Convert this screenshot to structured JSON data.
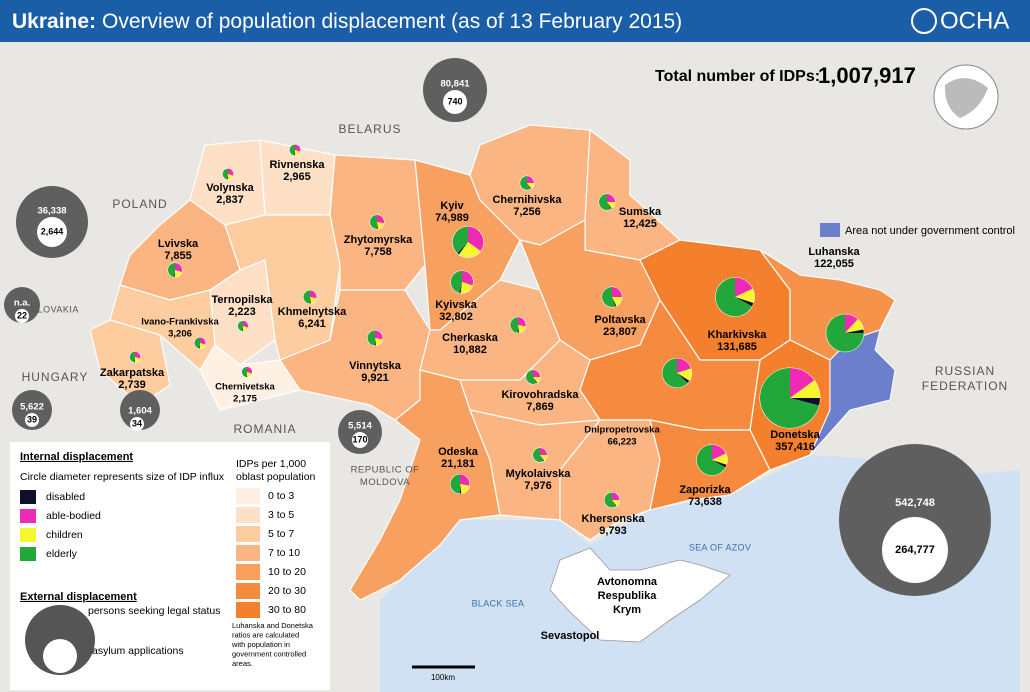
{
  "header": {
    "title_bold": "Ukraine:",
    "title": "Overview of population displacement (as of 13 February 2015)",
    "logo": "OCHA"
  },
  "total": {
    "label": "Total number of IDPs:",
    "value": "1,007,917"
  },
  "legend_area": {
    "label": "Area not under government control",
    "color": "#6b7fcc"
  },
  "oblasts": [
    {
      "name": "Volynska",
      "idps": 2837,
      "idps_label": "2,837",
      "fill": "#fde0c5",
      "shares": [
        2,
        30,
        20,
        48
      ]
    },
    {
      "name": "Rivnenska",
      "idps": 2965,
      "idps_label": "2,965",
      "fill": "#fde0c5",
      "shares": [
        2,
        30,
        20,
        48
      ]
    },
    {
      "name": "Lvivska",
      "idps": 7855,
      "idps_label": "7,855",
      "fill": "#fbb583",
      "shares": [
        2,
        30,
        20,
        48
      ]
    },
    {
      "name": "Ternopilska",
      "idps": 2223,
      "idps_label": "2,223",
      "fill": "#fde0c5",
      "shares": [
        2,
        30,
        20,
        48
      ]
    },
    {
      "name": "Khmelnytska",
      "idps": 6241,
      "idps_label": "6,241",
      "fill": "#fdcda0",
      "shares": [
        2,
        28,
        20,
        50
      ]
    },
    {
      "name": "Zhytomyrska",
      "idps": 7758,
      "idps_label": "7,758",
      "fill": "#fbb583",
      "shares": [
        2,
        28,
        20,
        50
      ]
    },
    {
      "name": "Kyiv",
      "idps": 74989,
      "idps_label": "74,989",
      "fill": "#f68b3f",
      "shares": [
        2,
        35,
        25,
        38
      ]
    },
    {
      "name": "Kyivska",
      "idps": 32802,
      "idps_label": "32,802",
      "fill": "#f8a060",
      "shares": [
        2,
        30,
        22,
        46
      ]
    },
    {
      "name": "Chernihivska",
      "idps": 7256,
      "idps_label": "7,256",
      "fill": "#fbb583",
      "shares": [
        2,
        25,
        15,
        58
      ]
    },
    {
      "name": "Sumska",
      "idps": 12425,
      "idps_label": "12,425",
      "fill": "#fbb583",
      "shares": [
        2,
        25,
        15,
        58
      ]
    },
    {
      "name": "Ivano-Frankivska",
      "idps": 3206,
      "idps_label": "3,206",
      "fill": "#fdcda0",
      "shares": [
        2,
        30,
        20,
        48
      ]
    },
    {
      "name": "Zakarpatska",
      "idps": 2739,
      "idps_label": "2,739",
      "fill": "#fdcda0",
      "shares": [
        2,
        30,
        20,
        48
      ]
    },
    {
      "name": "Chernivetska",
      "idps": 2175,
      "idps_label": "2,175",
      "fill": "#fef0e2",
      "shares": [
        2,
        30,
        20,
        48
      ]
    },
    {
      "name": "Vinnytska",
      "idps": 9921,
      "idps_label": "9,921",
      "fill": "#fbb583",
      "shares": [
        2,
        28,
        20,
        50
      ]
    },
    {
      "name": "Cherkaska",
      "idps": 10882,
      "idps_label": "10,882",
      "fill": "#fbb583",
      "shares": [
        2,
        28,
        20,
        50
      ]
    },
    {
      "name": "Poltavska",
      "idps": 23807,
      "idps_label": "23,807",
      "fill": "#f8a060",
      "shares": [
        2,
        25,
        18,
        55
      ]
    },
    {
      "name": "Kharkivska",
      "idps": 131685,
      "idps_label": "131,685",
      "fill": "#f47f2c",
      "shares": [
        3,
        18,
        12,
        67
      ]
    },
    {
      "name": "Luhanska",
      "idps": 122055,
      "idps_label": "122,055",
      "fill": "#f7924a",
      "shares": [
        3,
        12,
        10,
        75
      ]
    },
    {
      "name": "Donetska",
      "idps": 357416,
      "idps_label": "357,416",
      "fill": "#f47f2c",
      "shares": [
        4,
        15,
        10,
        71
      ]
    },
    {
      "name": "Kirovohradska",
      "idps": 7869,
      "idps_label": "7,869",
      "fill": "#fbb583",
      "shares": [
        2,
        25,
        15,
        58
      ]
    },
    {
      "name": "Dnipropetrovska",
      "idps": 66223,
      "idps_label": "66,223",
      "fill": "#f68b3f",
      "shares": [
        3,
        20,
        14,
        63
      ]
    },
    {
      "name": "Zaporizka",
      "idps": 73638,
      "idps_label": "73,638",
      "fill": "#f68b3f",
      "shares": [
        3,
        18,
        12,
        67
      ]
    },
    {
      "name": "Odeska",
      "idps": 21181,
      "idps_label": "21,181",
      "fill": "#f8a060",
      "shares": [
        2,
        28,
        20,
        50
      ]
    },
    {
      "name": "Mykolaivska",
      "idps": 7976,
      "idps_label": "7,976",
      "fill": "#fbb583",
      "shares": [
        2,
        25,
        15,
        58
      ]
    },
    {
      "name": "Khersonska",
      "idps": 9793,
      "idps_label": "9,793",
      "fill": "#fbb583",
      "shares": [
        2,
        25,
        15,
        58
      ]
    }
  ],
  "external": [
    {
      "seeking": 80841,
      "seeking_label": "80,841",
      "asylum": 740,
      "asylum_label": "740"
    },
    {
      "seeking": 36338,
      "seeking_label": "36,338",
      "asylum": 2644,
      "asylum_label": "2,644"
    },
    {
      "seeking": null,
      "seeking_label": "n.a.",
      "asylum": 22,
      "asylum_label": "22"
    },
    {
      "seeking": 5622,
      "seeking_label": "5,622",
      "asylum": 39,
      "asylum_label": "39"
    },
    {
      "seeking": 1604,
      "seeking_label": "1,604",
      "asylum": 34,
      "asylum_label": "34"
    },
    {
      "seeking": 5514,
      "seeking_label": "5,514",
      "asylum": 170,
      "asylum_label": "170"
    },
    {
      "seeking": 542748,
      "seeking_label": "542,748",
      "asylum": 264777,
      "asylum_label": "264,777"
    }
  ],
  "places": [
    {
      "lines": [
        "BELARUS"
      ]
    },
    {
      "lines": [
        "POLAND"
      ]
    },
    {
      "lines": [
        "SLOVAKIA"
      ]
    },
    {
      "lines": [
        "HUNGARY"
      ]
    },
    {
      "lines": [
        "ROMANIA"
      ]
    },
    {
      "lines": [
        "REPUBLIC OF",
        "MOLDOVA"
      ]
    },
    {
      "lines": [
        "RUSSIAN",
        "FEDERATION"
      ]
    },
    {
      "lines": [
        "BLACK SEA"
      ]
    },
    {
      "lines": [
        "SEA OF AZOV"
      ]
    },
    {
      "lines": [
        "Avtonomna",
        "Respublika",
        "Krym"
      ]
    },
    {
      "lines": [
        "Sevastopol"
      ]
    }
  ],
  "legend": {
    "internal_title": "Internal displacement",
    "internal_note": "Circle diameter represents size of IDP influx",
    "pie_keys": [
      {
        "label": "disabled",
        "color": "#10102a"
      },
      {
        "label": "able-bodied",
        "color": "#ee2ab4"
      },
      {
        "label": "children",
        "color": "#f5f530"
      },
      {
        "label": "elderly",
        "color": "#22a83a"
      }
    ],
    "density_title": [
      "IDPs per 1,000",
      "oblast population"
    ],
    "density_classes": [
      {
        "label": "0 to 3",
        "color": "#fef0e2"
      },
      {
        "label": "3 to 5",
        "color": "#fde0c5"
      },
      {
        "label": "5 to 7",
        "color": "#fdcda0"
      },
      {
        "label": "7 to 10",
        "color": "#fbb583"
      },
      {
        "label": "10 to 20",
        "color": "#f8a060"
      },
      {
        "label": "20 to 30",
        "color": "#f68b3f"
      },
      {
        "label": "30 to 80",
        "color": "#f47f2c"
      }
    ],
    "density_note": [
      "Luhanska and Donetska",
      "ratios are calculated",
      "with population in",
      "government controlled",
      "areas."
    ],
    "external_title": "External displacement",
    "external_seeking": "persons seeking legal status",
    "external_asylum": "asylum applications"
  },
  "scale": "100km"
}
